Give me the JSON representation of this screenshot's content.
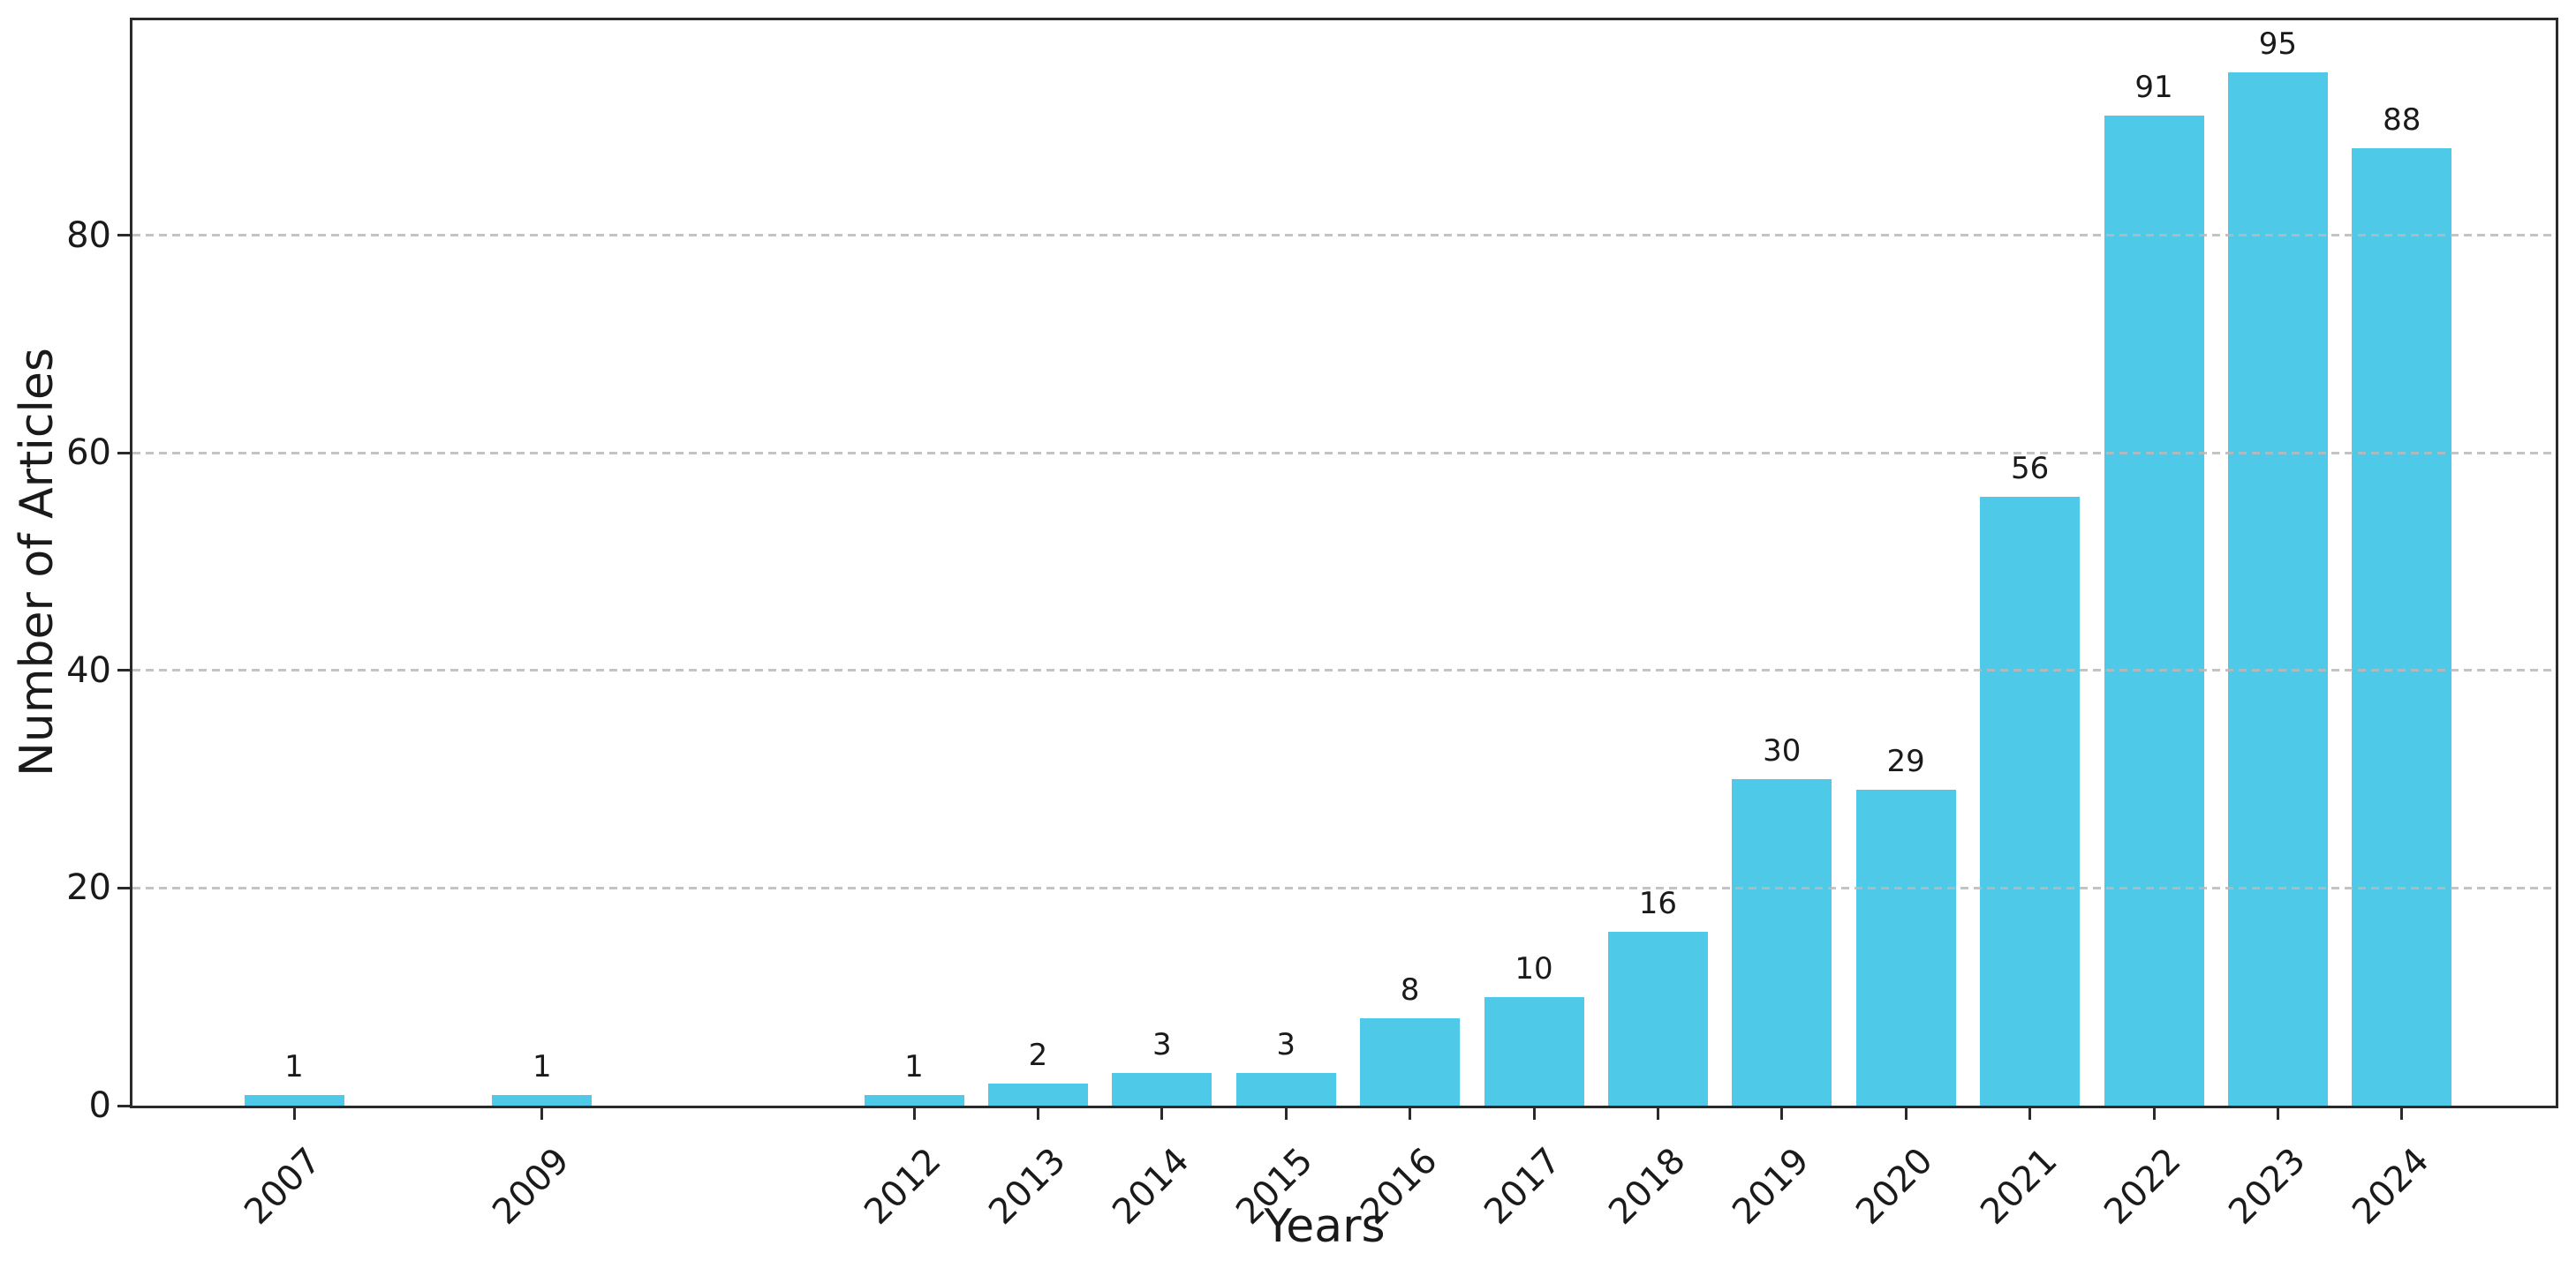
{
  "figure": {
    "background_color": "#ffffff",
    "text_color": "#1a1a1a",
    "axis_color": "#2a2a2a",
    "grid_color": "#b9b9b9",
    "accent_color": "#4ec9e8"
  },
  "chart_data": {
    "type": "bar",
    "title": "",
    "xlabel": "Years",
    "ylabel": "Number of Articles",
    "categories": [
      "2007",
      "2009",
      "2012",
      "2013",
      "2014",
      "2015",
      "2016",
      "2017",
      "2018",
      "2019",
      "2020",
      "2021",
      "2022",
      "2023",
      "2024"
    ],
    "values": [
      1,
      1,
      1,
      2,
      3,
      3,
      8,
      10,
      16,
      30,
      29,
      56,
      91,
      95,
      88
    ],
    "bar_value_labels": [
      "1",
      "1",
      "1",
      "2",
      "3",
      "3",
      "8",
      "10",
      "16",
      "30",
      "29",
      "56",
      "91",
      "95",
      "88"
    ],
    "y_ticks": [
      0,
      20,
      40,
      60,
      80
    ],
    "ylim": [
      0,
      100
    ],
    "x_axis_type": "linear-by-year",
    "missing_years": [
      "2008",
      "2010",
      "2011"
    ],
    "grid": "horizontal dashed lines at y ticks, drawn over bars",
    "legend": "none",
    "bar_color": "#4ec9e8",
    "x_tick_label_rotation_deg": 45
  }
}
